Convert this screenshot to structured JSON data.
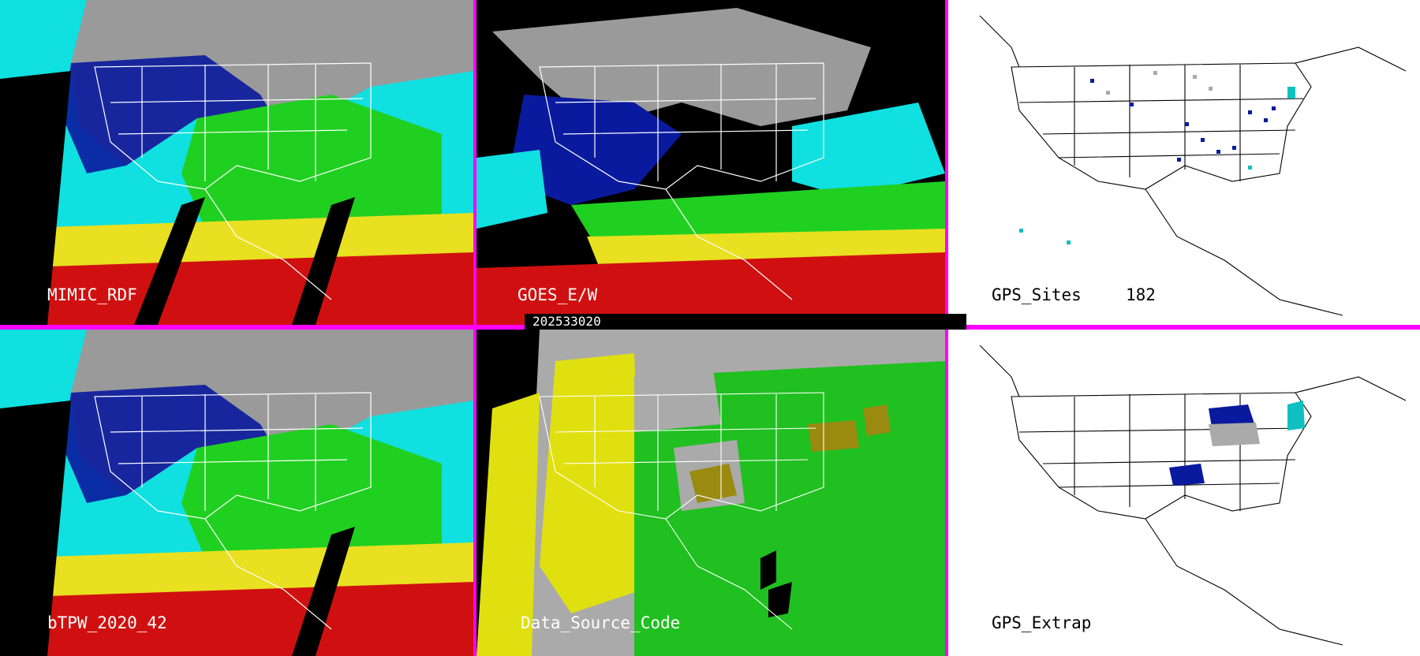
{
  "panels": [
    {
      "id": "mimic",
      "label": "MIMIC_RDF"
    },
    {
      "id": "goes",
      "label": "GOES_E/W"
    },
    {
      "id": "gps-sites",
      "label": "GPS_Sites",
      "count": "182"
    },
    {
      "id": "btpw",
      "label": "bTPW_2020_42"
    },
    {
      "id": "dsc",
      "label": "Data_Source_Code"
    },
    {
      "id": "gps-extrap",
      "label": "GPS_Extrap"
    }
  ],
  "timestamp": "202533020",
  "colors": {
    "divider": "#ff00ff",
    "land_bg": "#ffffff",
    "tpw_dry": "#9a9a9a",
    "tpw_low": "#0a1a9e",
    "tpw_mid": "#10e0e0",
    "tpw_moist": "#20d020",
    "tpw_wet": "#e8e020",
    "tpw_vwet": "#d01010",
    "dsc_gray": "#aaaaaa",
    "dsc_yellow": "#e0e010",
    "dsc_green": "#20c020",
    "dsc_olive": "#9a8a10"
  }
}
